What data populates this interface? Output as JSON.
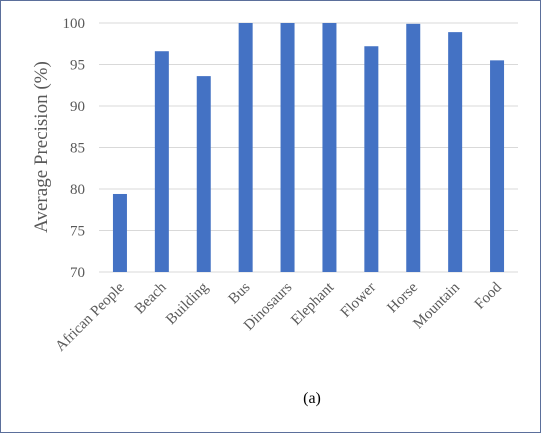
{
  "chart_data": {
    "type": "bar",
    "categories": [
      "African People",
      "Beach",
      "Building",
      "Bus",
      "Dinosaurs",
      "Elephant",
      "Flower",
      "Horse",
      "Mountain",
      "Food"
    ],
    "values": [
      79.4,
      96.6,
      93.6,
      100,
      100,
      100,
      97.2,
      99.9,
      98.9,
      95.5
    ],
    "ylabel": "Average Precision (%)",
    "ylim": [
      70,
      100
    ],
    "yticks": [
      70,
      75,
      80,
      85,
      90,
      95,
      100
    ],
    "grid": true,
    "legend": "none",
    "bar_color": "#4472c4",
    "grid_color": "#d9d9d9"
  },
  "caption": "(a)"
}
